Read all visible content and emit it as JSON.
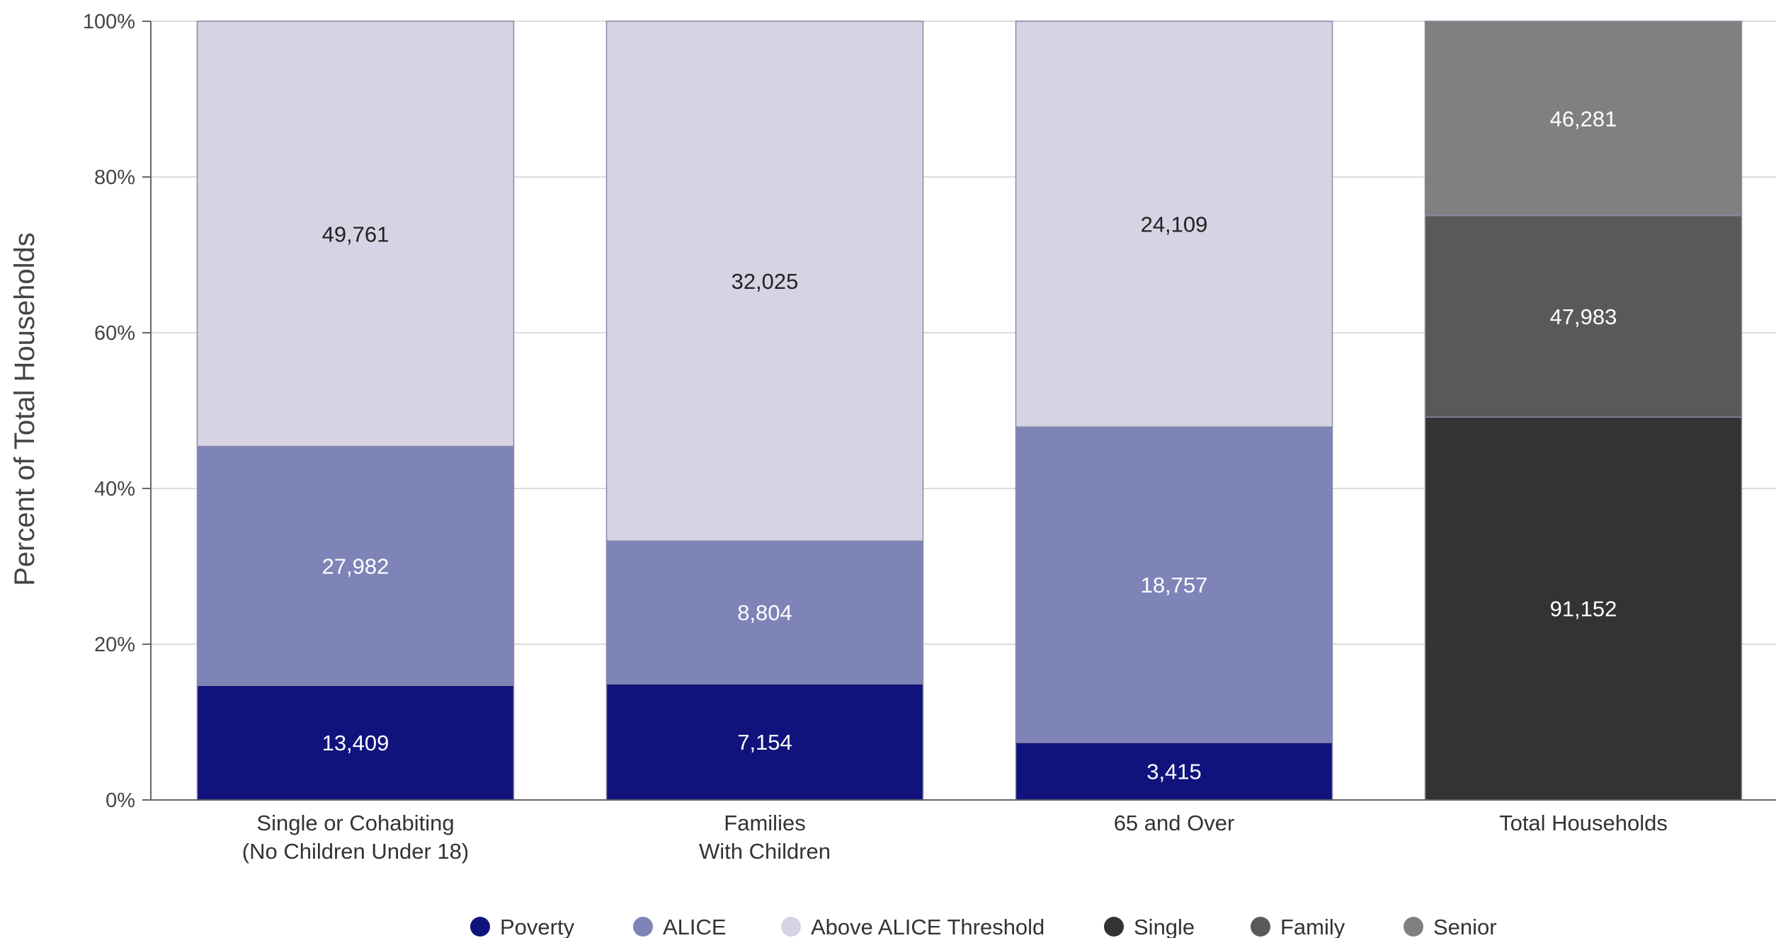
{
  "chart_data": {
    "type": "bar",
    "stacked": true,
    "normalized": true,
    "ylabel": "Percent of Total Households",
    "xlabel": "",
    "ylim": [
      0,
      100
    ],
    "yticks": [
      "0%",
      "20%",
      "40%",
      "60%",
      "80%",
      "100%"
    ],
    "grid": true,
    "legend_position": "bottom",
    "categories": [
      [
        "Single or Cohabiting",
        "(No Children Under 18)"
      ],
      [
        "Families",
        "With Children"
      ],
      [
        "65 and Over"
      ],
      [
        "Total Households"
      ]
    ],
    "bars": [
      {
        "segments": [
          {
            "series": "Poverty",
            "value": 13409,
            "label": "13,409"
          },
          {
            "series": "ALICE",
            "value": 27982,
            "label": "27,982"
          },
          {
            "series": "Above ALICE Threshold",
            "value": 49761,
            "label": "49,761"
          }
        ]
      },
      {
        "segments": [
          {
            "series": "Poverty",
            "value": 7154,
            "label": "7,154"
          },
          {
            "series": "ALICE",
            "value": 8804,
            "label": "8,804"
          },
          {
            "series": "Above ALICE Threshold",
            "value": 32025,
            "label": "32,025"
          }
        ]
      },
      {
        "segments": [
          {
            "series": "Poverty",
            "value": 3415,
            "label": "3,415"
          },
          {
            "series": "ALICE",
            "value": 18757,
            "label": "18,757"
          },
          {
            "series": "Above ALICE Threshold",
            "value": 24109,
            "label": "24,109"
          }
        ]
      },
      {
        "segments": [
          {
            "series": "Single",
            "value": 91152,
            "label": "91,152"
          },
          {
            "series": "Family",
            "value": 47983,
            "label": "47,983"
          },
          {
            "series": "Senior",
            "value": 46281,
            "label": "46,281"
          }
        ]
      }
    ],
    "legend": [
      {
        "name": "Poverty",
        "color": "#11137c"
      },
      {
        "name": "ALICE",
        "color": "#7e83b8"
      },
      {
        "name": "Above ALICE Threshold",
        "color": "#d5d3e4"
      },
      {
        "name": "Single",
        "color": "#333333"
      },
      {
        "name": "Family",
        "color": "#595959"
      },
      {
        "name": "Senior",
        "color": "#808080"
      }
    ],
    "label_colors": {
      "Poverty": "#ffffff",
      "ALICE": "#ffffff",
      "Above ALICE Threshold": "#222222",
      "Single": "#ffffff",
      "Family": "#ffffff",
      "Senior": "#ffffff"
    }
  }
}
